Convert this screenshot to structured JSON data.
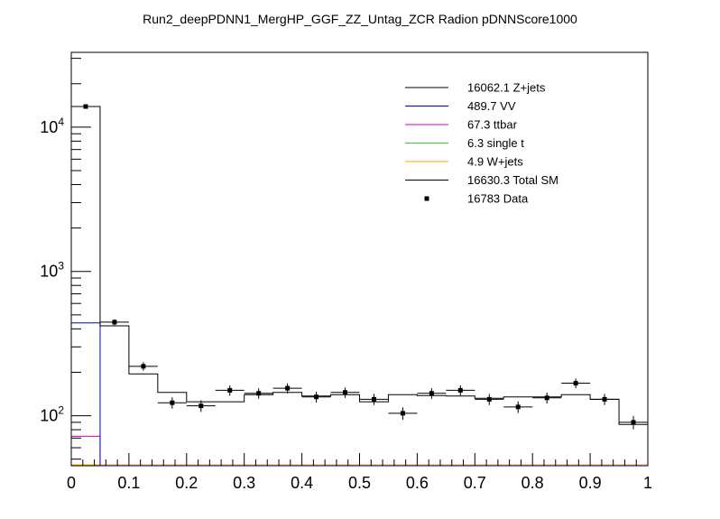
{
  "chart_data": {
    "type": "histogram",
    "title": "Run2_deepPDNN1_MergHP_GGF_ZZ_Untag_ZCR Radion  pDNNScore1000",
    "xlabel": "",
    "ylabel": "",
    "xlim": [
      0,
      1
    ],
    "ylim": [
      45,
      33000
    ],
    "ylog": true,
    "legend_position": "top-right",
    "x_ticks": [
      "0",
      "0.1",
      "0.2",
      "0.3",
      "0.4",
      "0.5",
      "0.6",
      "0.7",
      "0.8",
      "0.9",
      "1"
    ],
    "y_ticks": [
      {
        "value": 100,
        "base": "10",
        "exp": "2"
      },
      {
        "value": 1000,
        "base": "10",
        "exp": "3"
      },
      {
        "value": 10000,
        "base": "10",
        "exp": "4"
      }
    ],
    "bin_edges": [
      0,
      0.05,
      0.1,
      0.15,
      0.2,
      0.25,
      0.3,
      0.35,
      0.4,
      0.45,
      0.5,
      0.55,
      0.6,
      0.65,
      0.7,
      0.75,
      0.8,
      0.85,
      0.9,
      0.95,
      1.0
    ],
    "series": [
      {
        "name": "Z+jets",
        "legend": "16062.1 Z+jets",
        "color": "#000000",
        "style": "line"
      },
      {
        "name": "VV",
        "legend": "489.7 VV",
        "color": "#0000cc",
        "style": "line",
        "values": [
          440,
          0,
          0,
          0,
          0,
          0,
          0,
          0,
          0,
          0,
          0,
          0,
          0,
          0,
          0,
          0,
          0,
          0,
          0,
          0
        ]
      },
      {
        "name": "ttbar",
        "legend": "67.3 ttbar",
        "color": "#cc00cc",
        "style": "line",
        "values": [
          72,
          0,
          0,
          0,
          0,
          0,
          0,
          0,
          0,
          0,
          0,
          0,
          0,
          0,
          0,
          0,
          0,
          0,
          0,
          0
        ]
      },
      {
        "name": "single t",
        "legend": "6.3 single t",
        "color": "#33cc33",
        "style": "line"
      },
      {
        "name": "W+jets",
        "legend": "4.9 W+jets",
        "color": "#ffaa00",
        "style": "line"
      },
      {
        "name": "Total SM",
        "legend": "16630.3 Total SM",
        "color": "#000000",
        "style": "line",
        "values": [
          13900,
          420,
          195,
          145,
          125,
          125,
          140,
          145,
          137,
          140,
          125,
          140,
          138,
          137,
          132,
          135,
          135,
          140,
          130,
          87
        ]
      },
      {
        "name": "Data",
        "legend": "16783 Data",
        "color": "#000000",
        "style": "points",
        "values": [
          13900,
          445,
          220,
          123,
          117,
          150,
          143,
          155,
          135,
          145,
          130,
          104,
          143,
          150,
          130,
          115,
          133,
          168,
          130,
          90
        ]
      }
    ]
  }
}
